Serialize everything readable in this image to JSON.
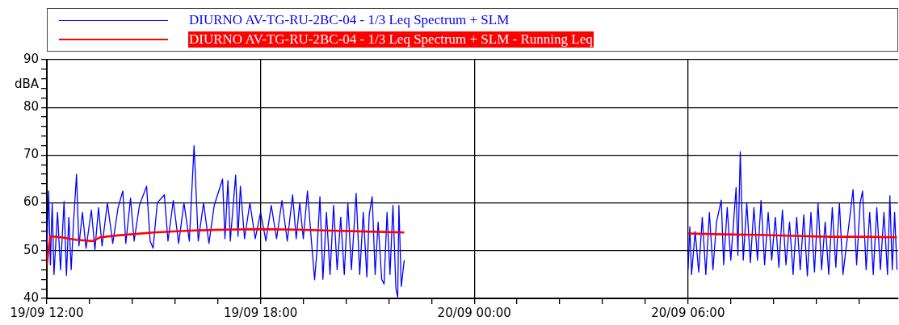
{
  "chart_data": {
    "type": "line",
    "ylabel": "dBA",
    "xlim": [
      "--09-19T12:00",
      "--09-20T11:54"
    ],
    "xticks": [
      {
        "value": "--09-19T12:00",
        "label": "19/09 12:00"
      },
      {
        "value": "--09-19T13:12",
        "label": null
      },
      {
        "value": "--09-19T14:24",
        "label": null
      },
      {
        "value": "--09-19T15:36",
        "label": null
      },
      {
        "value": "--09-19T16:48",
        "label": null
      },
      {
        "value": "--09-19T18:00",
        "label": "19/09 18:00"
      },
      {
        "value": "--09-19T19:12",
        "label": null
      },
      {
        "value": "--09-19T20:24",
        "label": null
      },
      {
        "value": "--09-19T21:36",
        "label": null
      },
      {
        "value": "--09-19T22:48",
        "label": null
      },
      {
        "value": "--09-20T00:00",
        "label": "20/09 00:00"
      },
      {
        "value": "--09-20T01:12",
        "label": null
      },
      {
        "value": "--09-20T02:24",
        "label": null
      },
      {
        "value": "--09-20T03:36",
        "label": null
      },
      {
        "value": "--09-20T04:48",
        "label": null
      },
      {
        "value": "--09-20T06:00",
        "label": "20/09 06:00"
      },
      {
        "value": "--09-20T07:12",
        "label": null
      },
      {
        "value": "--09-20T08:24",
        "label": null
      },
      {
        "value": "--09-20T09:36",
        "label": null
      },
      {
        "value": "--09-20T10:48",
        "label": null
      }
    ],
    "ylim": [
      40,
      90
    ],
    "yticks": [
      40,
      {
        "value": 42,
        "label": null
      },
      {
        "value": 44,
        "label": null
      },
      {
        "value": 46,
        "label": null
      },
      {
        "value": 48,
        "label": null
      },
      50,
      {
        "value": 52,
        "label": null
      },
      {
        "value": 54,
        "label": null
      },
      {
        "value": 56,
        "label": null
      },
      {
        "value": 58,
        "label": null
      },
      60,
      {
        "value": 62,
        "label": null
      },
      {
        "value": 64,
        "label": null
      },
      {
        "value": 66,
        "label": null
      },
      {
        "value": 68,
        "label": null
      },
      70,
      {
        "value": 72,
        "label": null
      },
      {
        "value": 74,
        "label": null
      },
      {
        "value": 76,
        "label": null
      },
      {
        "value": 78,
        "label": null
      },
      80,
      {
        "value": 82,
        "label": null
      },
      {
        "value": 84,
        "label": null
      },
      {
        "value": 86,
        "label": null
      },
      {
        "value": 88,
        "label": null
      },
      90
    ],
    "grid": true,
    "legend": "top",
    "marker": "none",
    "line_style": "solid",
    "series": [
      {
        "name": "DIURNO AV-TG-RU-2BC-04  - 1/3 Leq Spectrum + SLM",
        "color": "#0000ff",
        "x": [
          "--09-19T12:00",
          "--09-19T12:03",
          "--09-19T12:06",
          "--09-19T12:09",
          "--09-19T12:12",
          "--09-19T12:18",
          "--09-19T12:23",
          "--09-19T12:29",
          "--09-19T12:33",
          "--09-19T12:37",
          "--09-19T12:41",
          "--09-19T12:45",
          "--09-19T12:50",
          "--09-19T12:54",
          "--09-19T13:00",
          "--09-19T13:06",
          "--09-19T13:15",
          "--09-19T13:21",
          "--09-19T13:27",
          "--09-19T13:33",
          "--09-19T13:42",
          "--09-19T13:51",
          "--09-19T14:00",
          "--09-19T14:08",
          "--09-19T14:13",
          "--09-19T14:21",
          "--09-19T14:27",
          "--09-19T14:36",
          "--09-19T14:48",
          "--09-19T14:54",
          "--09-19T14:59",
          "--09-19T15:06",
          "--09-19T15:18",
          "--09-19T15:24",
          "--09-19T15:33",
          "--09-19T15:42",
          "--09-19T15:51",
          "--09-19T16:00",
          "--09-19T16:08",
          "--09-19T16:15",
          "--09-19T16:24",
          "--09-19T16:33",
          "--09-19T16:42",
          "--09-19T16:56",
          "--09-19T17:00",
          "--09-19T17:05",
          "--09-19T17:09",
          "--09-19T17:18",
          "--09-19T17:22",
          "--09-19T17:26",
          "--09-19T17:33",
          "--09-19T17:42",
          "--09-19T17:51",
          "--09-19T18:00",
          "--09-19T18:09",
          "--09-19T18:18",
          "--09-19T18:27",
          "--09-19T18:36",
          "--09-19T18:45",
          "--09-19T18:54",
          "--09-19T19:00",
          "--09-19T19:06",
          "--09-19T19:12",
          "--09-19T19:19",
          "--09-19T19:25",
          "--09-19T19:31",
          "--09-19T19:35",
          "--09-19T19:40",
          "--09-19T19:45",
          "--09-19T19:51",
          "--09-19T19:57",
          "--09-19T20:03",
          "--09-19T20:09",
          "--09-19T20:15",
          "--09-19T20:21",
          "--09-19T20:27",
          "--09-19T20:33",
          "--09-19T20:41",
          "--09-19T20:47",
          "--09-19T20:53",
          "--09-19T20:59",
          "--09-19T21:03",
          "--09-19T21:08",
          "--09-19T21:13",
          "--09-19T21:18",
          "--09-19T21:24",
          "--09-19T21:28",
          "--09-19T21:33",
          "--09-19T21:38",
          "--09-19T21:43",
          "--09-19T21:48",
          "--09-19T21:51",
          "--09-19T21:53",
          "--09-19T21:57",
          "--09-19T22:02",
          "--09-20T02:00",
          "--09-20T06:00",
          "--09-20T06:03",
          "--09-20T06:06",
          "--09-20T06:12",
          "--09-20T06:18",
          "--09-20T06:24",
          "--09-20T06:30",
          "--09-20T06:36",
          "--09-20T06:42",
          "--09-20T06:48",
          "--09-20T06:56",
          "--09-20T07:00",
          "--09-20T07:06",
          "--09-20T07:12",
          "--09-20T07:21",
          "--09-20T07:24",
          "--09-20T07:28",
          "--09-20T07:33",
          "--09-20T07:39",
          "--09-20T07:45",
          "--09-20T07:51",
          "--09-20T07:57",
          "--09-20T08:03",
          "--09-20T08:09",
          "--09-20T08:15",
          "--09-20T08:21",
          "--09-20T08:27",
          "--09-20T08:33",
          "--09-20T08:39",
          "--09-20T08:45",
          "--09-20T08:51",
          "--09-20T08:57",
          "--09-20T09:03",
          "--09-20T09:09",
          "--09-20T09:15",
          "--09-20T09:21",
          "--09-20T09:27",
          "--09-20T09:33",
          "--09-20T09:39",
          "--09-20T09:45",
          "--09-20T09:51",
          "--09-20T09:57",
          "--09-20T10:03",
          "--09-20T10:09",
          "--09-20T10:15",
          "--09-20T10:21",
          "--09-20T10:38",
          "--09-20T10:44",
          "--09-20T10:50",
          "--09-20T10:54",
          "--09-20T11:00",
          "--09-20T11:06",
          "--09-20T11:12",
          "--09-20T11:18",
          "--09-20T11:24",
          "--09-20T11:30",
          "--09-20T11:36",
          "--09-20T11:40",
          "--09-20T11:44",
          "--09-20T11:48",
          "--09-20T11:52"
        ],
        "values": [
          50,
          62.5,
          47,
          60,
          45,
          58,
          46,
          60.3,
          44.8,
          57,
          46,
          56,
          66,
          51,
          58,
          50.5,
          58.5,
          50.2,
          59,
          51,
          60,
          51.5,
          59,
          62.5,
          51.5,
          61,
          52,
          59.5,
          63.5,
          52,
          50.5,
          60,
          61.7,
          52,
          60.5,
          51.5,
          60,
          52,
          72,
          52,
          60,
          51.5,
          59.5,
          65,
          52.5,
          64.7,
          52,
          65.8,
          53,
          63.5,
          52.5,
          60,
          52.5,
          58,
          52,
          59.5,
          52.5,
          60.5,
          52,
          61.7,
          52.5,
          60,
          52.5,
          62.5,
          53,
          43.9,
          50,
          61.3,
          44,
          58,
          45,
          59.5,
          46,
          57,
          45,
          60,
          46,
          62,
          45,
          58,
          44.5,
          57.5,
          61.3,
          45,
          56,
          44,
          43,
          58,
          45,
          59.5,
          42,
          40.3,
          59.5,
          42.5,
          48,
          null,
          46,
          55,
          45,
          54,
          45.5,
          57,
          45,
          58,
          46,
          56,
          60.6,
          47,
          59,
          48,
          63.2,
          49,
          70.7,
          48,
          60,
          47.5,
          59,
          48,
          60.5,
          47,
          58,
          48,
          57,
          46.5,
          58.5,
          47,
          56,
          45,
          57,
          46,
          57.5,
          44.7,
          58,
          45.5,
          60,
          46,
          56,
          45,
          59,
          46.5,
          60,
          45,
          62.8,
          47,
          60,
          62.5,
          46,
          58,
          45,
          59,
          46,
          58,
          45,
          61.5,
          46,
          58,
          46
        ]
      },
      {
        "name": "DIURNO AV-TG-RU-2BC-04  - 1/3 Leq Spectrum + SLM - Running Leq",
        "color": "#ff0000",
        "x": [
          "--09-19T12:00",
          "--09-19T12:03",
          "--09-19T12:06",
          "--09-19T12:24",
          "--09-19T12:48",
          "--09-19T13:18",
          "--09-19T13:30",
          "--09-19T14:00",
          "--09-19T15:00",
          "--09-19T16:00",
          "--09-19T17:00",
          "--09-19T18:00",
          "--09-19T19:00",
          "--09-19T20:00",
          "--09-19T21:00",
          "--09-19T22:02",
          "--09-20T02:00",
          "--09-20T06:00",
          "--09-20T07:00",
          "--09-20T08:00",
          "--09-20T09:00",
          "--09-20T10:00",
          "--09-20T11:00",
          "--09-20T11:52"
        ],
        "values": [
          47,
          50.5,
          53,
          52.8,
          52.3,
          52,
          52.8,
          53.2,
          53.8,
          54.2,
          54.4,
          54.5,
          54.4,
          54.2,
          54,
          53.8,
          null,
          53.6,
          53.4,
          53.3,
          53.1,
          52.9,
          52.9,
          52.8
        ]
      }
    ]
  }
}
